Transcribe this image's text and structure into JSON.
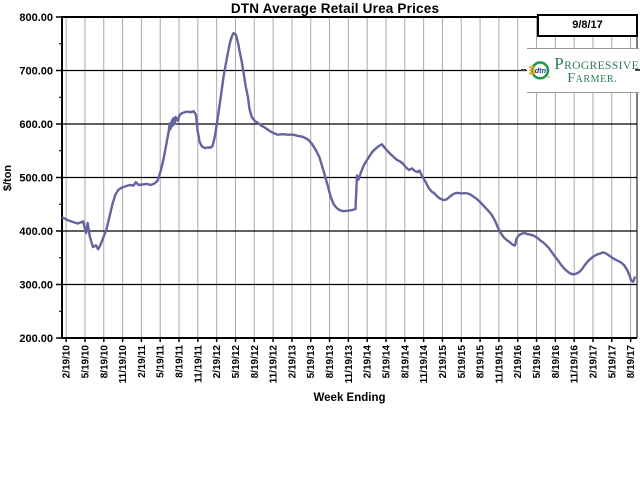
{
  "logo": {
    "dtn_text": "dtn",
    "brand_top": "Progressive",
    "brand_bottom": "Farmer."
  },
  "chart_data": {
    "type": "line",
    "title": "DTN Average Retail Urea Prices",
    "xlabel": "Week Ending",
    "ylabel": "$/ton",
    "annotations": {
      "date_label": "9/8/17"
    },
    "legend": "none",
    "ylim": [
      200,
      800
    ],
    "x_domain": [
      2010.08,
      2017.72
    ],
    "grid": {
      "horizontal_color": "#000000",
      "vertical_color": "#a9a9a9"
    },
    "y_ticks": [
      {
        "value": 200,
        "label": "200.00"
      },
      {
        "value": 300,
        "label": "300.00"
      },
      {
        "value": 400,
        "label": "400.00"
      },
      {
        "value": 500,
        "label": "500.00"
      },
      {
        "value": 600,
        "label": "600.00"
      },
      {
        "value": 700,
        "label": "700.00"
      },
      {
        "value": 800,
        "label": "800.00"
      }
    ],
    "y_minor_ticks": [
      250,
      350,
      450,
      550,
      650,
      750
    ],
    "x_ticks": [
      {
        "label": "2/19/10",
        "pos": 2010.135
      },
      {
        "label": "5/19/10",
        "pos": 2010.385
      },
      {
        "label": "8/19/10",
        "pos": 2010.635
      },
      {
        "label": "11/19/10",
        "pos": 2010.885
      },
      {
        "label": "2/19/11",
        "pos": 2011.135
      },
      {
        "label": "5/19/11",
        "pos": 2011.385
      },
      {
        "label": "8/19/11",
        "pos": 2011.635
      },
      {
        "label": "11/19/11",
        "pos": 2011.885
      },
      {
        "label": "2/19/12",
        "pos": 2012.135
      },
      {
        "label": "5/19/12",
        "pos": 2012.385
      },
      {
        "label": "8/19/12",
        "pos": 2012.635
      },
      {
        "label": "11/19/12",
        "pos": 2012.885
      },
      {
        "label": "2/19/13",
        "pos": 2013.135
      },
      {
        "label": "5/19/13",
        "pos": 2013.385
      },
      {
        "label": "8/19/13",
        "pos": 2013.635
      },
      {
        "label": "11/19/13",
        "pos": 2013.885
      },
      {
        "label": "2/19/14",
        "pos": 2014.135
      },
      {
        "label": "5/19/14",
        "pos": 2014.385
      },
      {
        "label": "8/19/14",
        "pos": 2014.635
      },
      {
        "label": "11/19/14",
        "pos": 2014.885
      },
      {
        "label": "2/19/15",
        "pos": 2015.135
      },
      {
        "label": "5/19/15",
        "pos": 2015.385
      },
      {
        "label": "8/19/15",
        "pos": 2015.635
      },
      {
        "label": "11/19/15",
        "pos": 2015.885
      },
      {
        "label": "2/19/16",
        "pos": 2016.135
      },
      {
        "label": "5/19/16",
        "pos": 2016.385
      },
      {
        "label": "8/19/16",
        "pos": 2016.635
      },
      {
        "label": "11/19/16",
        "pos": 2016.885
      },
      {
        "label": "2/19/17",
        "pos": 2017.135
      },
      {
        "label": "5/19/17",
        "pos": 2017.385
      },
      {
        "label": "8/19/17",
        "pos": 2017.635
      }
    ],
    "series": [
      {
        "name": "Average retail urea price ($/ton)",
        "color": "#64649e",
        "points": [
          [
            2010.09,
            425
          ],
          [
            2010.16,
            420
          ],
          [
            2010.22,
            417
          ],
          [
            2010.29,
            414
          ],
          [
            2010.36,
            418
          ],
          [
            2010.4,
            396
          ],
          [
            2010.42,
            415
          ],
          [
            2010.45,
            390
          ],
          [
            2010.49,
            370
          ],
          [
            2010.53,
            373
          ],
          [
            2010.56,
            366
          ],
          [
            2010.59,
            374
          ],
          [
            2010.63,
            388
          ],
          [
            2010.67,
            403
          ],
          [
            2010.71,
            426
          ],
          [
            2010.75,
            450
          ],
          [
            2010.79,
            468
          ],
          [
            2010.83,
            477
          ],
          [
            2010.87,
            481
          ],
          [
            2010.93,
            484
          ],
          [
            2010.98,
            486
          ],
          [
            2011.03,
            485
          ],
          [
            2011.06,
            491
          ],
          [
            2011.1,
            486
          ],
          [
            2011.15,
            487
          ],
          [
            2011.21,
            488
          ],
          [
            2011.26,
            486
          ],
          [
            2011.31,
            489
          ],
          [
            2011.35,
            494
          ],
          [
            2011.39,
            512
          ],
          [
            2011.43,
            535
          ],
          [
            2011.47,
            565
          ],
          [
            2011.5,
            588
          ],
          [
            2011.51,
            601
          ],
          [
            2011.52,
            590
          ],
          [
            2011.54,
            607
          ],
          [
            2011.55,
            596
          ],
          [
            2011.56,
            611
          ],
          [
            2011.58,
            600
          ],
          [
            2011.59,
            613
          ],
          [
            2011.62,
            606
          ],
          [
            2011.64,
            616
          ],
          [
            2011.67,
            620
          ],
          [
            2011.71,
            622
          ],
          [
            2011.75,
            623
          ],
          [
            2011.79,
            622
          ],
          [
            2011.83,
            624
          ],
          [
            2011.86,
            617
          ],
          [
            2011.88,
            589
          ],
          [
            2011.91,
            566
          ],
          [
            2011.94,
            558
          ],
          [
            2011.98,
            555
          ],
          [
            2012.02,
            556
          ],
          [
            2012.06,
            556
          ],
          [
            2012.08,
            559
          ],
          [
            2012.11,
            576
          ],
          [
            2012.15,
            612
          ],
          [
            2012.19,
            651
          ],
          [
            2012.23,
            692
          ],
          [
            2012.27,
            722
          ],
          [
            2012.31,
            751
          ],
          [
            2012.34,
            765
          ],
          [
            2012.36,
            770
          ],
          [
            2012.39,
            767
          ],
          [
            2012.42,
            751
          ],
          [
            2012.44,
            736
          ],
          [
            2012.47,
            715
          ],
          [
            2012.5,
            690
          ],
          [
            2012.52,
            671
          ],
          [
            2012.55,
            651
          ],
          [
            2012.57,
            629
          ],
          [
            2012.6,
            613
          ],
          [
            2012.64,
            606
          ],
          [
            2012.68,
            602
          ],
          [
            2012.73,
            597
          ],
          [
            2012.79,
            592
          ],
          [
            2012.84,
            587
          ],
          [
            2012.89,
            583
          ],
          [
            2012.95,
            580
          ],
          [
            2013.01,
            581
          ],
          [
            2013.08,
            580
          ],
          [
            2013.15,
            580
          ],
          [
            2013.21,
            578
          ],
          [
            2013.28,
            576
          ],
          [
            2013.35,
            571
          ],
          [
            2013.4,
            563
          ],
          [
            2013.45,
            552
          ],
          [
            2013.5,
            538
          ],
          [
            2013.56,
            510
          ],
          [
            2013.61,
            485
          ],
          [
            2013.65,
            464
          ],
          [
            2013.69,
            450
          ],
          [
            2013.73,
            443
          ],
          [
            2013.77,
            439
          ],
          [
            2013.82,
            437
          ],
          [
            2013.88,
            438
          ],
          [
            2013.93,
            439
          ],
          [
            2013.98,
            441
          ],
          [
            2014.0,
            504
          ],
          [
            2014.02,
            496
          ],
          [
            2014.05,
            509
          ],
          [
            2014.09,
            523
          ],
          [
            2014.13,
            532
          ],
          [
            2014.17,
            541
          ],
          [
            2014.21,
            549
          ],
          [
            2014.25,
            554
          ],
          [
            2014.29,
            559
          ],
          [
            2014.33,
            562
          ],
          [
            2014.37,
            555
          ],
          [
            2014.41,
            549
          ],
          [
            2014.45,
            543
          ],
          [
            2014.49,
            538
          ],
          [
            2014.53,
            533
          ],
          [
            2014.57,
            530
          ],
          [
            2014.61,
            526
          ],
          [
            2014.65,
            519
          ],
          [
            2014.69,
            514
          ],
          [
            2014.73,
            517
          ],
          [
            2014.77,
            512
          ],
          [
            2014.81,
            510
          ],
          [
            2014.83,
            513
          ],
          [
            2014.87,
            501
          ],
          [
            2014.91,
            492
          ],
          [
            2014.95,
            481
          ],
          [
            2014.99,
            474
          ],
          [
            2015.03,
            470
          ],
          [
            2015.07,
            464
          ],
          [
            2015.11,
            460
          ],
          [
            2015.15,
            458
          ],
          [
            2015.19,
            459
          ],
          [
            2015.23,
            464
          ],
          [
            2015.27,
            468
          ],
          [
            2015.31,
            471
          ],
          [
            2015.35,
            471
          ],
          [
            2015.39,
            470
          ],
          [
            2015.43,
            471
          ],
          [
            2015.47,
            470
          ],
          [
            2015.51,
            468
          ],
          [
            2015.55,
            464
          ],
          [
            2015.59,
            460
          ],
          [
            2015.63,
            455
          ],
          [
            2015.67,
            449
          ],
          [
            2015.71,
            443
          ],
          [
            2015.75,
            437
          ],
          [
            2015.79,
            430
          ],
          [
            2015.83,
            420
          ],
          [
            2015.87,
            407
          ],
          [
            2015.91,
            396
          ],
          [
            2015.95,
            388
          ],
          [
            2015.99,
            383
          ],
          [
            2016.03,
            379
          ],
          [
            2016.07,
            374
          ],
          [
            2016.1,
            373
          ],
          [
            2016.12,
            386
          ],
          [
            2016.15,
            392
          ],
          [
            2016.19,
            395
          ],
          [
            2016.23,
            396
          ],
          [
            2016.27,
            394
          ],
          [
            2016.31,
            393
          ],
          [
            2016.35,
            391
          ],
          [
            2016.39,
            388
          ],
          [
            2016.43,
            383
          ],
          [
            2016.47,
            379
          ],
          [
            2016.51,
            374
          ],
          [
            2016.55,
            368
          ],
          [
            2016.59,
            360
          ],
          [
            2016.63,
            352
          ],
          [
            2016.67,
            345
          ],
          [
            2016.71,
            337
          ],
          [
            2016.75,
            330
          ],
          [
            2016.79,
            325
          ],
          [
            2016.83,
            321
          ],
          [
            2016.87,
            319
          ],
          [
            2016.91,
            320
          ],
          [
            2016.95,
            323
          ],
          [
            2016.99,
            329
          ],
          [
            2017.03,
            337
          ],
          [
            2017.07,
            344
          ],
          [
            2017.11,
            349
          ],
          [
            2017.15,
            353
          ],
          [
            2017.19,
            356
          ],
          [
            2017.23,
            358
          ],
          [
            2017.27,
            360
          ],
          [
            2017.31,
            358
          ],
          [
            2017.35,
            354
          ],
          [
            2017.39,
            350
          ],
          [
            2017.43,
            347
          ],
          [
            2017.47,
            344
          ],
          [
            2017.51,
            341
          ],
          [
            2017.55,
            336
          ],
          [
            2017.59,
            327
          ],
          [
            2017.62,
            317
          ],
          [
            2017.64,
            308
          ],
          [
            2017.67,
            305
          ],
          [
            2017.69,
            313
          ]
        ]
      }
    ]
  }
}
